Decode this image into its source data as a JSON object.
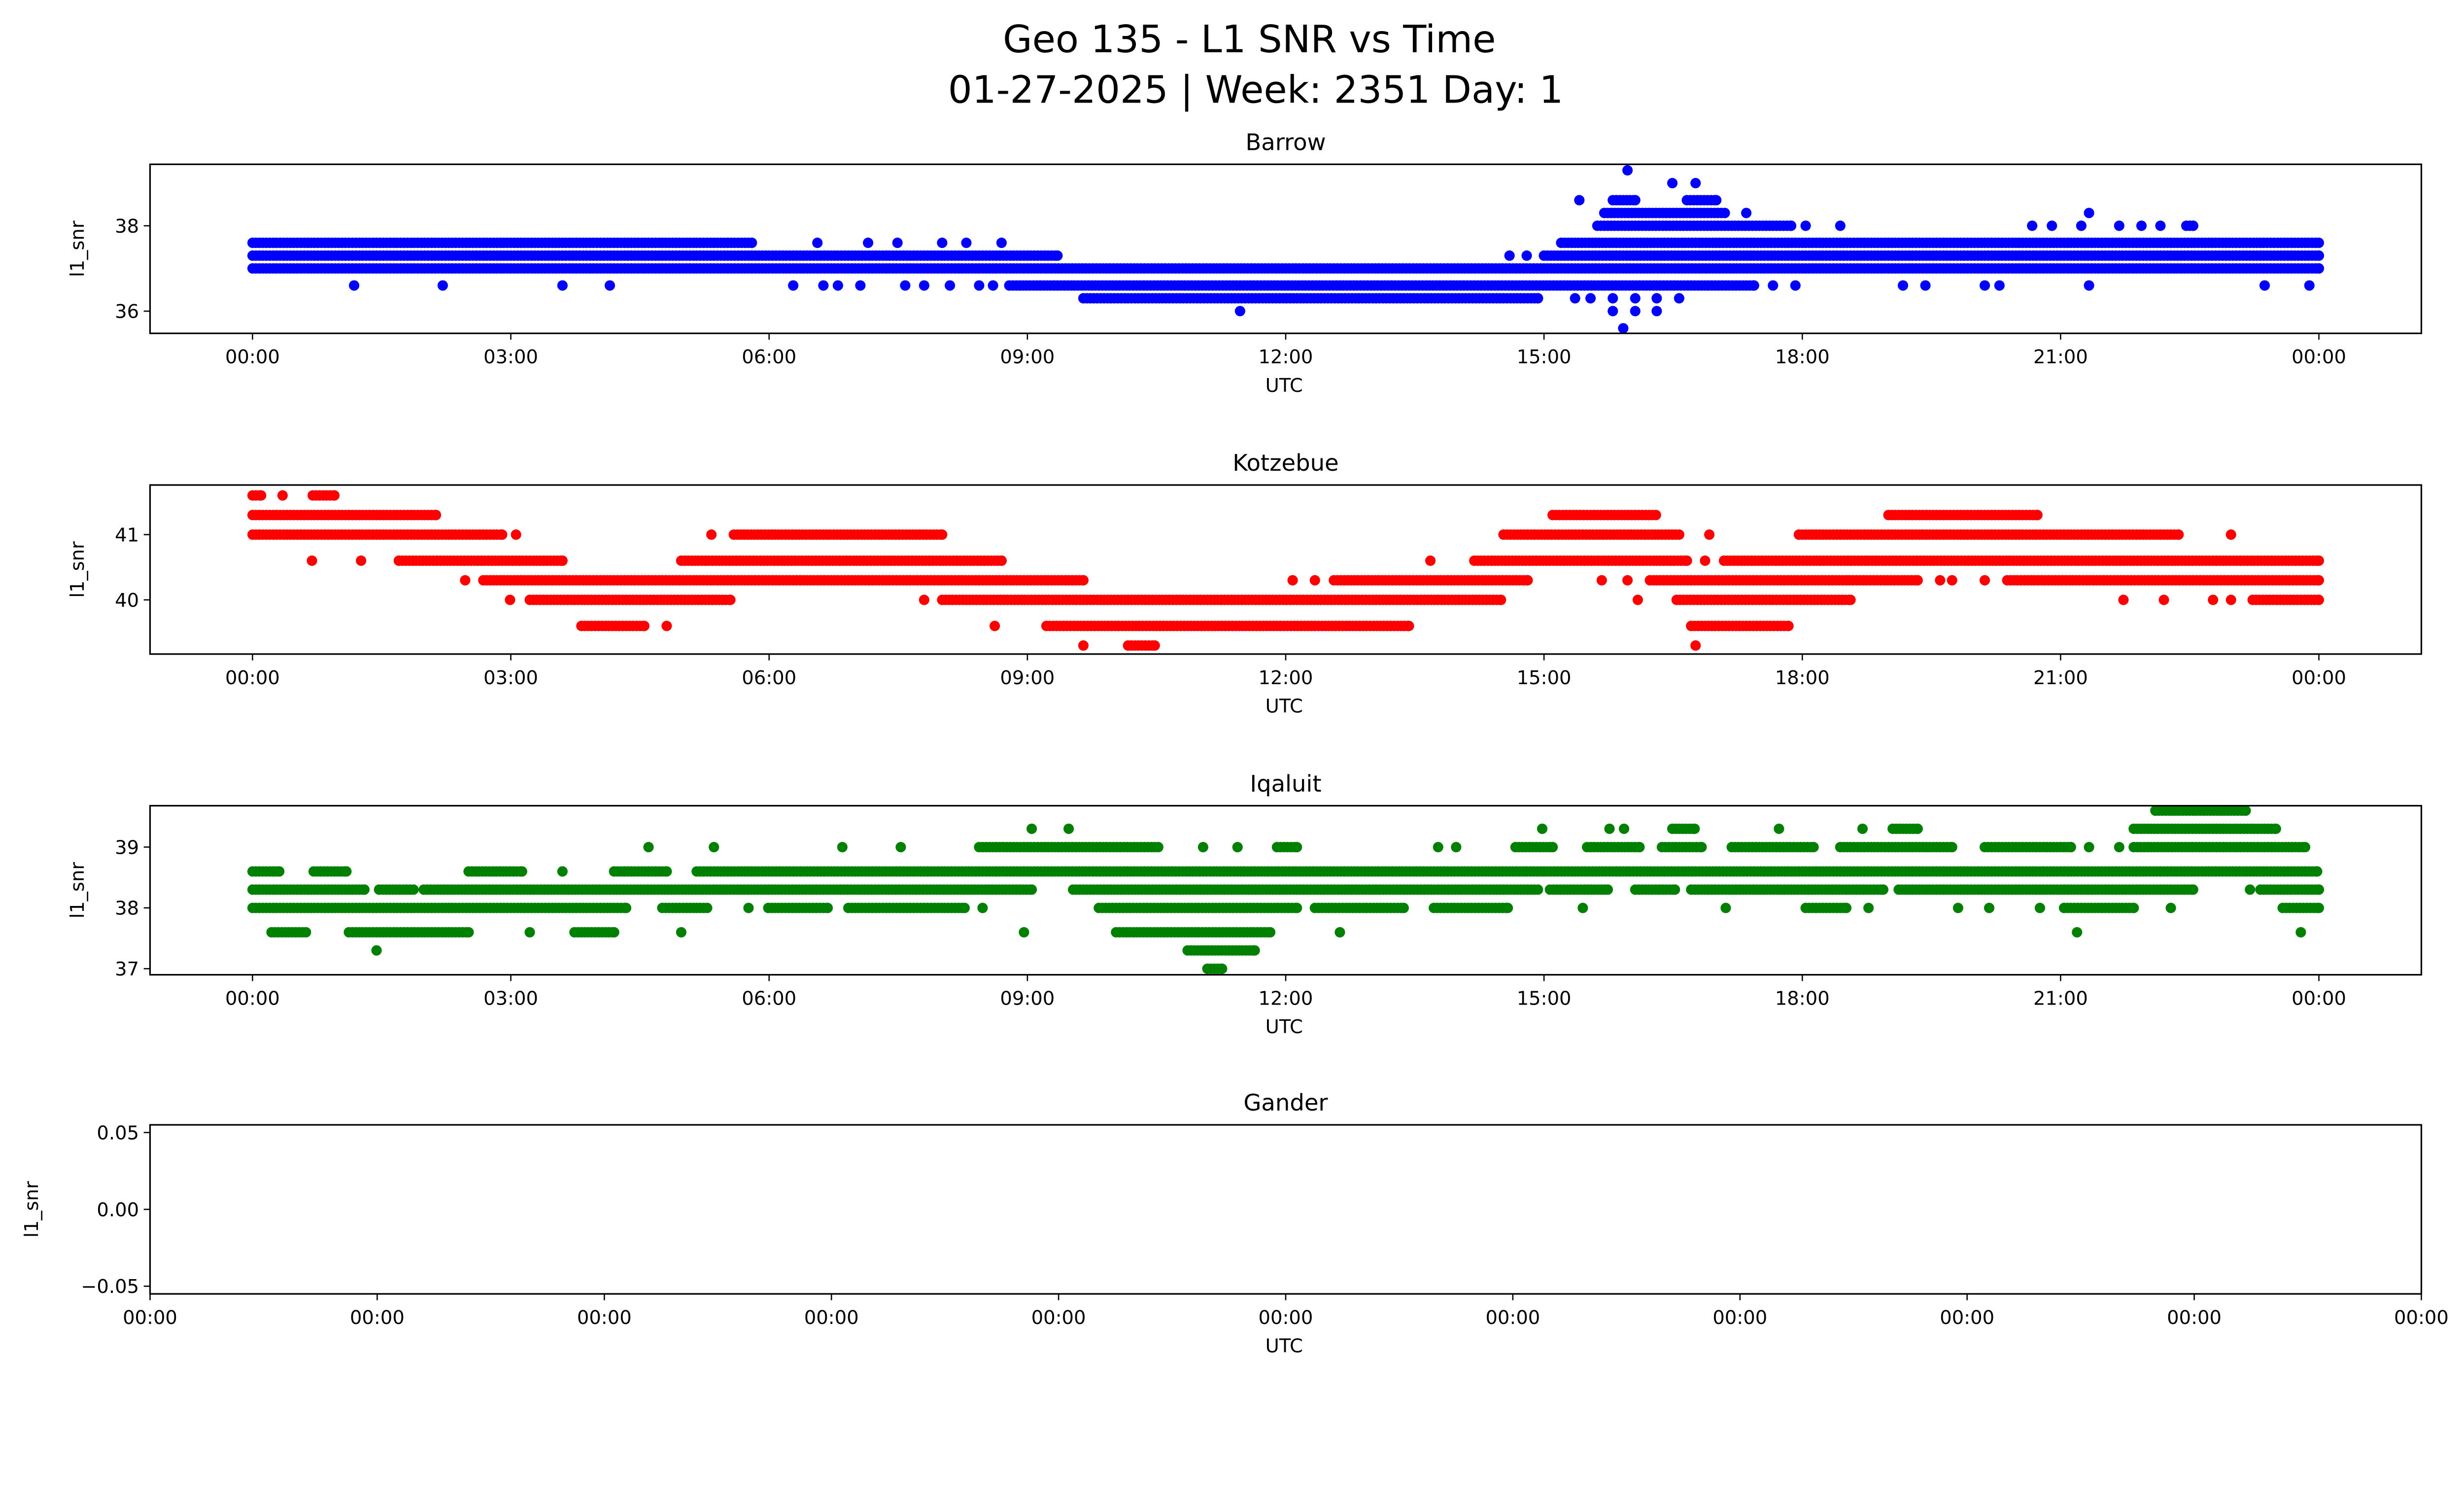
{
  "figure": {
    "title_line1": "Geo 135 - L1 SNR vs Time",
    "title_line2": "01-27-2025 | Week: 2351 Day: 1"
  },
  "chart_data": [
    {
      "type": "scatter",
      "title": "Barrow",
      "xlabel": "UTC",
      "ylabel": "l1_snr",
      "color": "#0000ff",
      "xlim_hours": [
        -1.19,
        25.19
      ],
      "ylim": [
        35.48,
        39.44
      ],
      "xticks": [
        {
          "h": 0,
          "label": "00:00"
        },
        {
          "h": 3,
          "label": "03:00"
        },
        {
          "h": 6,
          "label": "06:00"
        },
        {
          "h": 9,
          "label": "09:00"
        },
        {
          "h": 12,
          "label": "12:00"
        },
        {
          "h": 15,
          "label": "15:00"
        },
        {
          "h": 18,
          "label": "18:00"
        },
        {
          "h": 21,
          "label": "21:00"
        },
        {
          "h": 24,
          "label": "00:00"
        }
      ],
      "yticks": [
        {
          "v": 36,
          "label": "36"
        },
        {
          "v": 38,
          "label": "38"
        }
      ],
      "runs_hours_snr": [
        [
          0,
          24,
          37.0
        ],
        [
          0,
          9.35,
          37.3
        ],
        [
          14.6,
          14.6,
          37.3
        ],
        [
          14.8,
          14.8,
          37.3
        ],
        [
          15.0,
          24,
          37.3
        ],
        [
          0,
          5.8,
          37.6
        ],
        [
          6.56,
          6.56,
          37.6
        ],
        [
          7.15,
          7.15,
          37.6
        ],
        [
          7.49,
          7.49,
          37.6
        ],
        [
          8.01,
          8.01,
          37.6
        ],
        [
          8.29,
          8.29,
          37.6
        ],
        [
          8.7,
          8.7,
          37.6
        ],
        [
          15.2,
          24,
          37.6
        ],
        [
          1.18,
          1.18,
          36.6
        ],
        [
          2.21,
          2.21,
          36.6
        ],
        [
          3.6,
          3.6,
          36.6
        ],
        [
          4.15,
          4.15,
          36.6
        ],
        [
          6.28,
          6.28,
          36.6
        ],
        [
          6.63,
          6.63,
          36.6
        ],
        [
          6.8,
          6.8,
          36.6
        ],
        [
          7.06,
          7.06,
          36.6
        ],
        [
          7.58,
          7.58,
          36.6
        ],
        [
          7.8,
          7.8,
          36.6
        ],
        [
          8.1,
          8.1,
          36.6
        ],
        [
          8.44,
          8.44,
          36.6
        ],
        [
          8.6,
          8.6,
          36.6
        ],
        [
          8.79,
          17.44,
          36.6
        ],
        [
          17.66,
          17.66,
          36.6
        ],
        [
          17.92,
          17.92,
          36.6
        ],
        [
          19.17,
          19.17,
          36.6
        ],
        [
          19.43,
          19.43,
          36.6
        ],
        [
          20.12,
          20.12,
          36.6
        ],
        [
          20.29,
          20.29,
          36.6
        ],
        [
          21.33,
          21.33,
          36.6
        ],
        [
          23.37,
          23.37,
          36.6
        ],
        [
          23.89,
          23.89,
          36.6
        ],
        [
          9.65,
          14.93,
          36.3
        ],
        [
          15.36,
          15.36,
          36.3
        ],
        [
          15.54,
          15.54,
          36.3
        ],
        [
          15.8,
          15.8,
          36.3
        ],
        [
          16.06,
          16.06,
          36.3
        ],
        [
          16.31,
          16.31,
          36.3
        ],
        [
          16.57,
          16.57,
          36.3
        ],
        [
          11.47,
          11.47,
          36.0
        ],
        [
          15.8,
          15.8,
          36.0
        ],
        [
          16.06,
          16.06,
          36.0
        ],
        [
          16.31,
          16.31,
          36.0
        ],
        [
          15.92,
          15.92,
          35.6
        ],
        [
          15.62,
          17.87,
          38.0
        ],
        [
          18.04,
          18.04,
          38.0
        ],
        [
          18.44,
          18.44,
          38.0
        ],
        [
          20.67,
          20.67,
          38.0
        ],
        [
          20.9,
          20.9,
          38.0
        ],
        [
          21.24,
          21.24,
          38.0
        ],
        [
          21.68,
          21.68,
          38.0
        ],
        [
          21.94,
          21.94,
          38.0
        ],
        [
          22.16,
          22.16,
          38.0
        ],
        [
          22.46,
          22.54,
          38.0
        ],
        [
          15.7,
          17.1,
          38.3
        ],
        [
          17.35,
          17.35,
          38.3
        ],
        [
          21.33,
          21.33,
          38.3
        ],
        [
          15.41,
          15.41,
          38.6
        ],
        [
          15.8,
          16.06,
          38.6
        ],
        [
          16.66,
          17.0,
          38.6
        ],
        [
          16.49,
          16.49,
          39.0
        ],
        [
          16.76,
          16.76,
          39.0
        ],
        [
          15.97,
          15.97,
          39.3
        ]
      ]
    },
    {
      "type": "scatter",
      "title": "Kotzebue",
      "xlabel": "UTC",
      "ylabel": "l1_snr",
      "color": "#ff0000",
      "xlim_hours": [
        -1.19,
        25.19
      ],
      "ylim": [
        39.17,
        41.76
      ],
      "xticks": [
        {
          "h": 0,
          "label": "00:00"
        },
        {
          "h": 3,
          "label": "03:00"
        },
        {
          "h": 6,
          "label": "06:00"
        },
        {
          "h": 9,
          "label": "09:00"
        },
        {
          "h": 12,
          "label": "12:00"
        },
        {
          "h": 15,
          "label": "15:00"
        },
        {
          "h": 18,
          "label": "18:00"
        },
        {
          "h": 21,
          "label": "21:00"
        },
        {
          "h": 24,
          "label": "00:00"
        }
      ],
      "yticks": [
        {
          "v": 40,
          "label": "40"
        },
        {
          "v": 41,
          "label": "41"
        }
      ],
      "runs_hours_snr": [
        [
          0,
          0.1,
          41.6
        ],
        [
          0.35,
          0.35,
          41.6
        ],
        [
          0.7,
          0.95,
          41.6
        ],
        [
          0,
          2.13,
          41.3
        ],
        [
          15.1,
          16.3,
          41.3
        ],
        [
          19.0,
          20.73,
          41.3
        ],
        [
          0,
          2.9,
          41.0
        ],
        [
          3.06,
          3.06,
          41.0
        ],
        [
          5.33,
          5.33,
          41.0
        ],
        [
          5.59,
          8.01,
          41.0
        ],
        [
          14.53,
          16.57,
          41.0
        ],
        [
          16.92,
          16.92,
          41.0
        ],
        [
          17.96,
          22.37,
          41.0
        ],
        [
          22.98,
          22.98,
          41.0
        ],
        [
          0.69,
          0.69,
          40.6
        ],
        [
          1.26,
          1.26,
          40.6
        ],
        [
          1.7,
          3.6,
          40.6
        ],
        [
          4.98,
          8.7,
          40.6
        ],
        [
          13.68,
          13.68,
          40.6
        ],
        [
          14.19,
          16.66,
          40.6
        ],
        [
          16.87,
          16.87,
          40.6
        ],
        [
          17.09,
          24,
          40.6
        ],
        [
          2.47,
          2.47,
          40.3
        ],
        [
          2.68,
          9.65,
          40.3
        ],
        [
          12.08,
          12.08,
          40.3
        ],
        [
          12.34,
          12.34,
          40.3
        ],
        [
          12.56,
          14.81,
          40.3
        ],
        [
          15.67,
          15.67,
          40.3
        ],
        [
          15.97,
          15.97,
          40.3
        ],
        [
          16.23,
          19.34,
          40.3
        ],
        [
          19.6,
          19.6,
          40.3
        ],
        [
          19.74,
          19.74,
          40.3
        ],
        [
          20.12,
          20.12,
          40.3
        ],
        [
          20.38,
          24,
          40.3
        ],
        [
          2.99,
          2.99,
          40.0
        ],
        [
          3.22,
          5.55,
          40.0
        ],
        [
          7.8,
          7.8,
          40.0
        ],
        [
          8.01,
          14.5,
          40.0
        ],
        [
          16.09,
          16.09,
          40.0
        ],
        [
          16.54,
          18.56,
          40.0
        ],
        [
          21.73,
          21.73,
          40.0
        ],
        [
          22.2,
          22.2,
          40.0
        ],
        [
          22.77,
          22.77,
          40.0
        ],
        [
          22.98,
          22.98,
          40.0
        ],
        [
          23.23,
          24,
          40.0
        ],
        [
          3.82,
          4.55,
          39.6
        ],
        [
          4.81,
          4.81,
          39.6
        ],
        [
          8.62,
          8.62,
          39.6
        ],
        [
          9.22,
          13.43,
          39.6
        ],
        [
          16.71,
          17.84,
          39.6
        ],
        [
          9.65,
          9.65,
          39.3
        ],
        [
          10.17,
          10.48,
          39.3
        ],
        [
          16.76,
          16.76,
          39.3
        ]
      ]
    },
    {
      "type": "scatter",
      "title": "Iqaluit",
      "xlabel": "UTC",
      "ylabel": "l1_snr",
      "color": "#008000",
      "xlim_hours": [
        -1.19,
        25.19
      ],
      "ylim": [
        36.9,
        39.68
      ],
      "xticks": [
        {
          "h": 0,
          "label": "00:00"
        },
        {
          "h": 3,
          "label": "03:00"
        },
        {
          "h": 6,
          "label": "06:00"
        },
        {
          "h": 9,
          "label": "09:00"
        },
        {
          "h": 12,
          "label": "12:00"
        },
        {
          "h": 15,
          "label": "15:00"
        },
        {
          "h": 18,
          "label": "18:00"
        },
        {
          "h": 21,
          "label": "21:00"
        },
        {
          "h": 24,
          "label": "00:00"
        }
      ],
      "yticks": [
        {
          "v": 37,
          "label": "37"
        },
        {
          "v": 38,
          "label": "38"
        },
        {
          "v": 39,
          "label": "39"
        }
      ],
      "runs_hours_snr": [
        [
          22.1,
          23.15,
          39.6
        ],
        [
          9.05,
          9.05,
          39.3
        ],
        [
          9.48,
          9.48,
          39.3
        ],
        [
          14.98,
          14.98,
          39.3
        ],
        [
          15.76,
          15.76,
          39.3
        ],
        [
          15.93,
          15.93,
          39.3
        ],
        [
          16.49,
          16.75,
          39.3
        ],
        [
          17.73,
          17.73,
          39.3
        ],
        [
          18.7,
          18.7,
          39.3
        ],
        [
          19.05,
          19.34,
          39.3
        ],
        [
          21.85,
          23.5,
          39.3
        ],
        [
          4.6,
          4.6,
          39.0
        ],
        [
          5.36,
          5.36,
          39.0
        ],
        [
          6.85,
          6.85,
          39.0
        ],
        [
          7.53,
          7.53,
          39.0
        ],
        [
          8.44,
          10.52,
          39.0
        ],
        [
          11.04,
          11.04,
          39.0
        ],
        [
          11.44,
          11.44,
          39.0
        ],
        [
          11.9,
          12.13,
          39.0
        ],
        [
          13.77,
          13.77,
          39.0
        ],
        [
          13.98,
          13.98,
          39.0
        ],
        [
          14.67,
          15.1,
          39.0
        ],
        [
          15.5,
          16.11,
          39.0
        ],
        [
          16.37,
          16.83,
          39.0
        ],
        [
          17.18,
          18.13,
          39.0
        ],
        [
          18.44,
          19.74,
          39.0
        ],
        [
          20.12,
          21.12,
          39.0
        ],
        [
          21.33,
          21.33,
          39.0
        ],
        [
          21.68,
          21.68,
          39.0
        ],
        [
          21.85,
          23.84,
          39.0
        ],
        [
          0,
          0.31,
          38.6
        ],
        [
          0.71,
          1.09,
          38.6
        ],
        [
          2.51,
          3.13,
          38.6
        ],
        [
          3.6,
          3.6,
          38.6
        ],
        [
          4.2,
          4.81,
          38.6
        ],
        [
          5.16,
          23.98,
          38.6
        ],
        [
          0,
          1.3,
          38.3
        ],
        [
          1.47,
          1.87,
          38.3
        ],
        [
          1.99,
          9.05,
          38.3
        ],
        [
          9.53,
          14.93,
          38.3
        ],
        [
          15.07,
          15.74,
          38.3
        ],
        [
          16.06,
          16.52,
          38.3
        ],
        [
          16.71,
          18.94,
          38.3
        ],
        [
          19.12,
          22.54,
          38.3
        ],
        [
          23.2,
          23.2,
          38.3
        ],
        [
          23.32,
          24,
          38.3
        ],
        [
          0,
          4.34,
          38.0
        ],
        [
          4.76,
          5.28,
          38.0
        ],
        [
          5.76,
          5.76,
          38.0
        ],
        [
          5.99,
          6.68,
          38.0
        ],
        [
          6.92,
          8.27,
          38.0
        ],
        [
          8.48,
          8.48,
          38.0
        ],
        [
          9.83,
          12.13,
          38.0
        ],
        [
          12.34,
          13.37,
          38.0
        ],
        [
          13.72,
          14.58,
          38.0
        ],
        [
          15.45,
          15.45,
          38.0
        ],
        [
          17.11,
          17.11,
          38.0
        ],
        [
          18.04,
          18.51,
          38.0
        ],
        [
          18.77,
          18.77,
          38.0
        ],
        [
          19.81,
          19.81,
          38.0
        ],
        [
          20.17,
          20.17,
          38.0
        ],
        [
          20.76,
          20.76,
          38.0
        ],
        [
          21.04,
          21.85,
          38.0
        ],
        [
          22.28,
          22.28,
          38.0
        ],
        [
          23.58,
          24,
          38.0
        ],
        [
          0.22,
          0.62,
          37.6
        ],
        [
          1.12,
          2.51,
          37.6
        ],
        [
          3.22,
          3.22,
          37.6
        ],
        [
          3.74,
          4.2,
          37.6
        ],
        [
          4.98,
          4.98,
          37.6
        ],
        [
          8.96,
          8.96,
          37.6
        ],
        [
          10.03,
          11.82,
          37.6
        ],
        [
          12.63,
          12.63,
          37.6
        ],
        [
          21.19,
          21.19,
          37.6
        ],
        [
          23.79,
          23.79,
          37.6
        ],
        [
          1.44,
          1.44,
          37.3
        ],
        [
          10.86,
          11.64,
          37.3
        ],
        [
          11.09,
          11.26,
          37.0
        ]
      ]
    },
    {
      "type": "scatter",
      "title": "Gander",
      "xlabel": "UTC",
      "ylabel": "l1_snr",
      "color": "#008000",
      "xlim_hours": [
        0,
        10
      ],
      "ylim": [
        -0.055,
        0.055
      ],
      "xticks": [
        {
          "h": 0,
          "label": "00:00"
        },
        {
          "h": 1,
          "label": "00:00"
        },
        {
          "h": 2,
          "label": "00:00"
        },
        {
          "h": 3,
          "label": "00:00"
        },
        {
          "h": 4,
          "label": "00:00"
        },
        {
          "h": 5,
          "label": "00:00"
        },
        {
          "h": 6,
          "label": "00:00"
        },
        {
          "h": 7,
          "label": "00:00"
        },
        {
          "h": 8,
          "label": "00:00"
        },
        {
          "h": 9,
          "label": "00:00"
        },
        {
          "h": 10,
          "label": "00:00"
        }
      ],
      "yticks": [
        {
          "v": -0.05,
          "label": "−0.05"
        },
        {
          "v": 0,
          "label": "0.00"
        },
        {
          "v": 0.05,
          "label": "0.05"
        }
      ],
      "runs_hours_snr": []
    }
  ]
}
